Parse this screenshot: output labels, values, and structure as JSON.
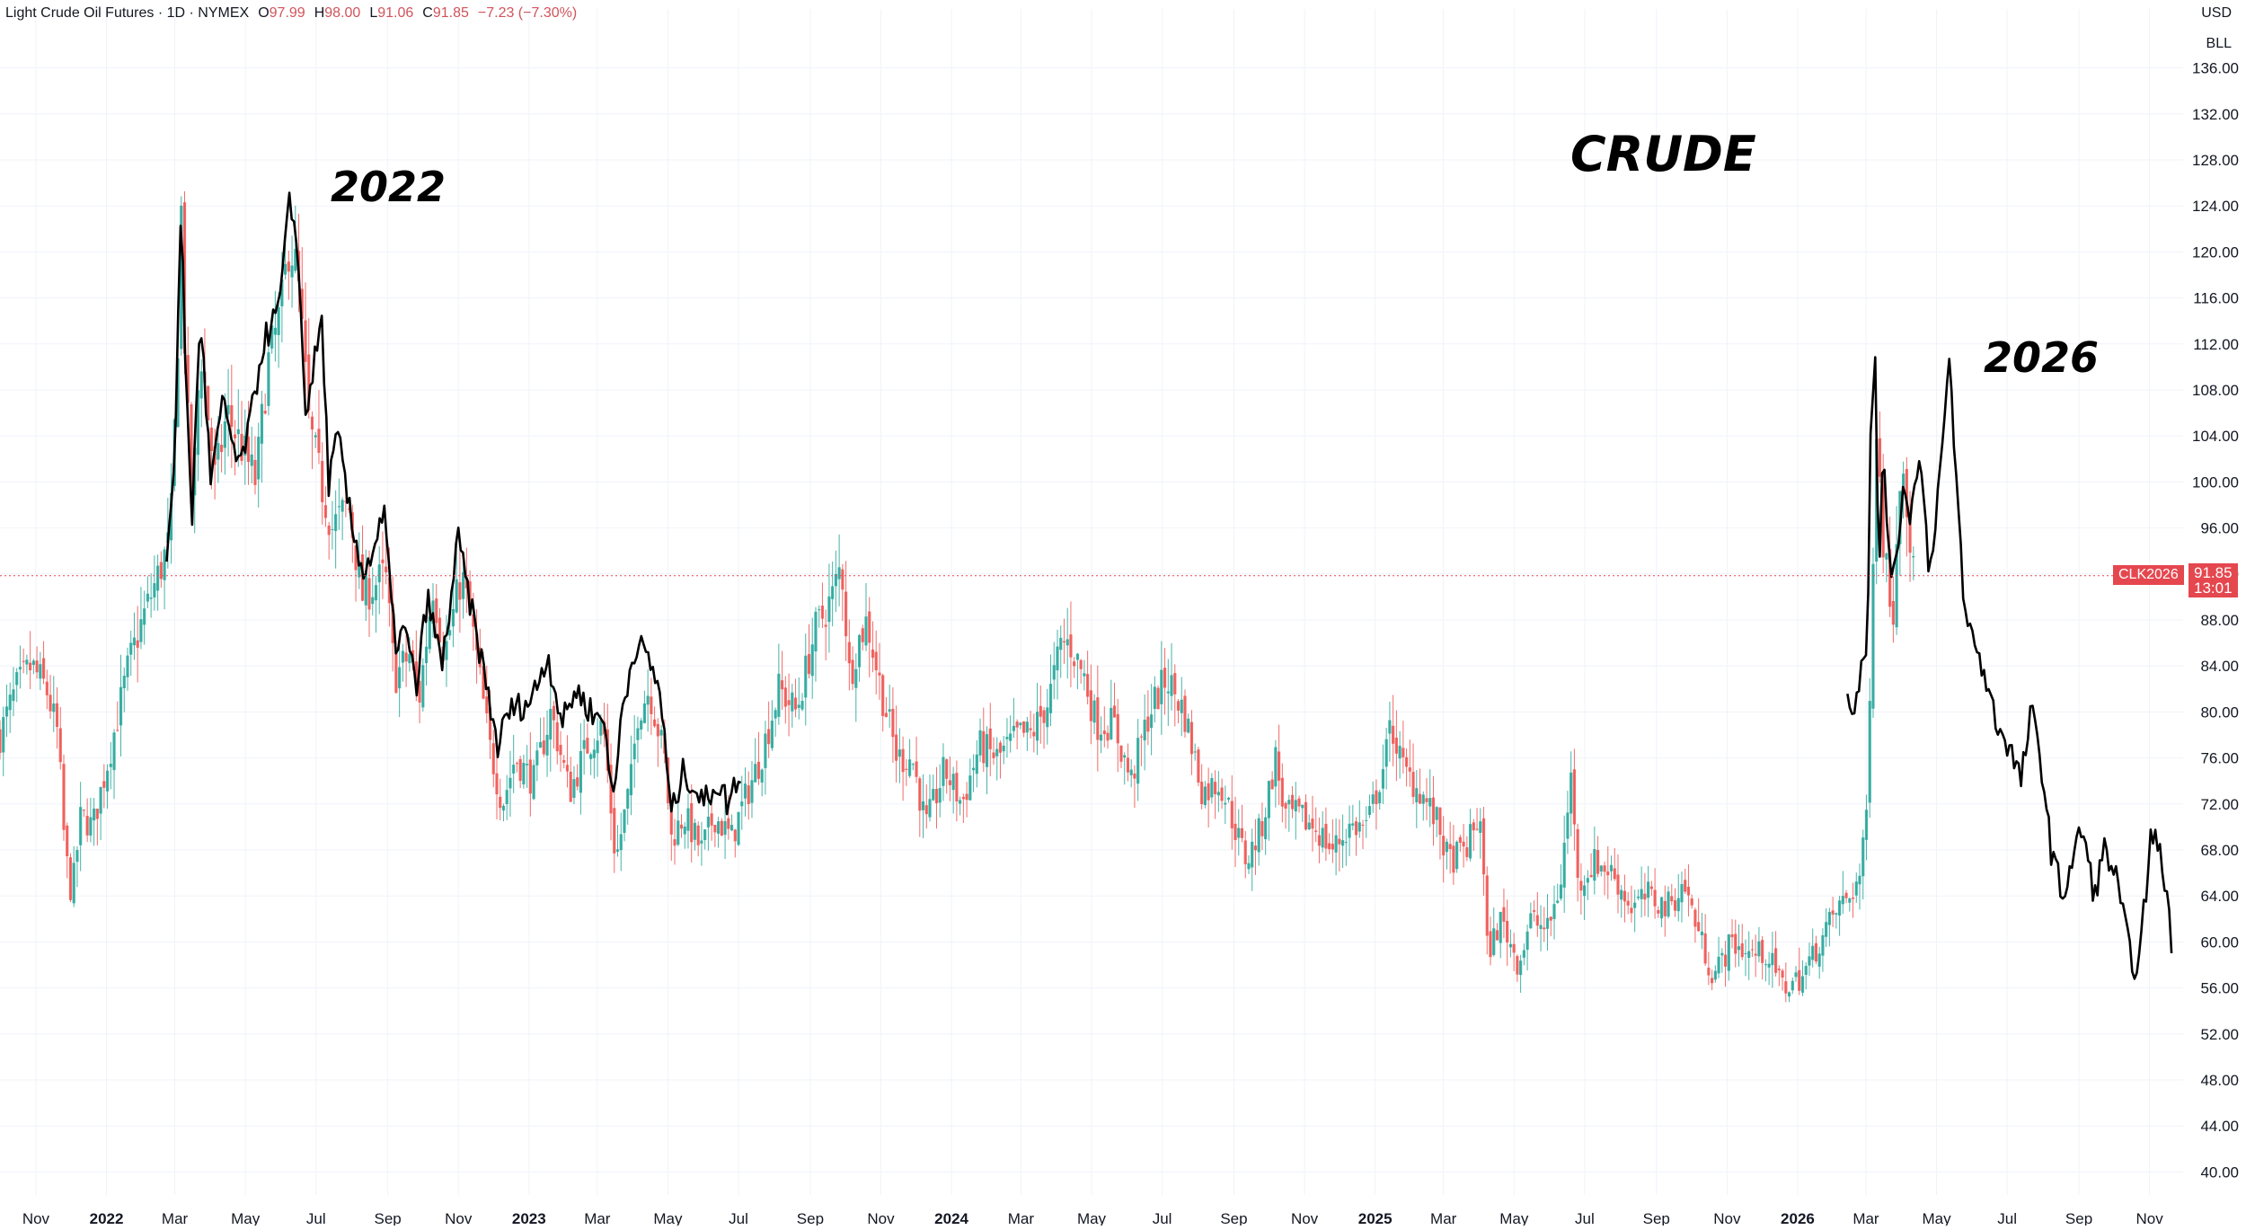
{
  "header": {
    "symbol_title": "Light Crude Oil Futures · 1D · NYMEX",
    "open_label": "O",
    "open_value": "97.99",
    "high_label": "H",
    "high_value": "98.00",
    "low_label": "L",
    "low_value": "91.06",
    "close_label": "C",
    "close_value": "91.85",
    "change": "−7.23 (−7.30%)"
  },
  "axis": {
    "currency": "USD",
    "unit": "BLL"
  },
  "price_label": {
    "symbol": "CLK2026",
    "price": "91.85",
    "countdown": "13:01"
  },
  "annotations": {
    "main": "CRUDE",
    "left": "2022",
    "right": "2026"
  },
  "colors": {
    "up": "#26a69a",
    "down": "#ef5350",
    "overlay": "#000000",
    "tag": "#e5474f",
    "grid": "#f0f3fa"
  },
  "chart_data": {
    "type": "line",
    "title": "",
    "xlabel": "",
    "ylabel": "",
    "ylim": [
      38,
      138
    ],
    "yticks": [
      40,
      44,
      48,
      52,
      56,
      60,
      64,
      68,
      72,
      76,
      80,
      84,
      88,
      92,
      96,
      100,
      104,
      108,
      112,
      116,
      120,
      124,
      128,
      132,
      136
    ],
    "ytick_labels": [
      "40.00",
      "44.00",
      "48.00",
      "52.00",
      "56.00",
      "60.00",
      "64.00",
      "68.00",
      "72.00",
      "76.00",
      "80.00",
      "84.00",
      "88.00",
      "92.00",
      "96.00",
      "100.00",
      "104.00",
      "108.00",
      "112.00",
      "116.00",
      "120.00",
      "124.00",
      "128.00",
      "132.00",
      "136.00"
    ],
    "xlim": [
      "2021-10-01",
      "2026-11-30"
    ],
    "xticks": [
      {
        "date": "2021-11-01",
        "label": "Nov",
        "bold": false
      },
      {
        "date": "2022-01-01",
        "label": "2022",
        "bold": true
      },
      {
        "date": "2022-03-01",
        "label": "Mar",
        "bold": false
      },
      {
        "date": "2022-05-01",
        "label": "May",
        "bold": false
      },
      {
        "date": "2022-07-01",
        "label": "Jul",
        "bold": false
      },
      {
        "date": "2022-09-01",
        "label": "Sep",
        "bold": false
      },
      {
        "date": "2022-11-01",
        "label": "Nov",
        "bold": false
      },
      {
        "date": "2023-01-01",
        "label": "2023",
        "bold": true
      },
      {
        "date": "2023-03-01",
        "label": "Mar",
        "bold": false
      },
      {
        "date": "2023-05-01",
        "label": "May",
        "bold": false
      },
      {
        "date": "2023-07-01",
        "label": "Jul",
        "bold": false
      },
      {
        "date": "2023-09-01",
        "label": "Sep",
        "bold": false
      },
      {
        "date": "2023-11-01",
        "label": "Nov",
        "bold": false
      },
      {
        "date": "2024-01-01",
        "label": "2024",
        "bold": true
      },
      {
        "date": "2024-03-01",
        "label": "Mar",
        "bold": false
      },
      {
        "date": "2024-05-01",
        "label": "May",
        "bold": false
      },
      {
        "date": "2024-07-01",
        "label": "Jul",
        "bold": false
      },
      {
        "date": "2024-09-01",
        "label": "Sep",
        "bold": false
      },
      {
        "date": "2024-11-01",
        "label": "Nov",
        "bold": false
      },
      {
        "date": "2025-01-01",
        "label": "2025",
        "bold": true
      },
      {
        "date": "2025-03-01",
        "label": "Mar",
        "bold": false
      },
      {
        "date": "2025-05-01",
        "label": "May",
        "bold": false
      },
      {
        "date": "2025-07-01",
        "label": "Jul",
        "bold": false
      },
      {
        "date": "2025-09-01",
        "label": "Sep",
        "bold": false
      },
      {
        "date": "2025-11-01",
        "label": "Nov",
        "bold": false
      },
      {
        "date": "2026-01-01",
        "label": "2026",
        "bold": true
      },
      {
        "date": "2026-03-01",
        "label": "Mar",
        "bold": false
      },
      {
        "date": "2026-05-01",
        "label": "May",
        "bold": false
      },
      {
        "date": "2026-07-01",
        "label": "Jul",
        "bold": false
      },
      {
        "date": "2026-09-01",
        "label": "Sep",
        "bold": false
      },
      {
        "date": "2026-11-01",
        "label": "Nov",
        "bold": false
      }
    ],
    "current_price": 91.85,
    "grid": true,
    "series": [
      {
        "type": "candlestick",
        "points": [
          [
            "2021-10-01",
            78
          ],
          [
            "2021-10-15",
            82
          ],
          [
            "2021-10-28",
            84
          ],
          [
            "2021-11-10",
            82
          ],
          [
            "2021-11-20",
            78
          ],
          [
            "2021-11-26",
            68
          ],
          [
            "2021-12-02",
            64
          ],
          [
            "2021-12-10",
            71
          ],
          [
            "2021-12-20",
            70
          ],
          [
            "2022-01-05",
            77
          ],
          [
            "2022-01-20",
            84
          ],
          [
            "2022-02-01",
            88
          ],
          [
            "2022-02-15",
            92
          ],
          [
            "2022-02-25",
            95
          ],
          [
            "2022-03-03",
            110
          ],
          [
            "2022-03-07",
            125
          ],
          [
            "2022-03-10",
            110
          ],
          [
            "2022-03-16",
            97
          ],
          [
            "2022-03-23",
            112
          ],
          [
            "2022-04-05",
            100
          ],
          [
            "2022-04-15",
            106
          ],
          [
            "2022-04-28",
            103
          ],
          [
            "2022-05-10",
            100
          ],
          [
            "2022-05-20",
            110
          ],
          [
            "2022-06-01",
            115
          ],
          [
            "2022-06-08",
            121
          ],
          [
            "2022-06-15",
            118
          ],
          [
            "2022-06-25",
            105
          ],
          [
            "2022-07-05",
            100
          ],
          [
            "2022-07-15",
            96
          ],
          [
            "2022-07-29",
            98
          ],
          [
            "2022-08-10",
            90
          ],
          [
            "2022-08-30",
            92
          ],
          [
            "2022-09-07",
            83
          ],
          [
            "2022-09-20",
            85
          ],
          [
            "2022-09-28",
            81
          ],
          [
            "2022-10-10",
            91
          ],
          [
            "2022-10-20",
            85
          ],
          [
            "2022-11-04",
            92
          ],
          [
            "2022-11-15",
            86
          ],
          [
            "2022-11-28",
            77
          ],
          [
            "2022-12-09",
            72
          ],
          [
            "2022-12-20",
            76
          ],
          [
            "2023-01-05",
            74
          ],
          [
            "2023-01-20",
            80
          ],
          [
            "2023-02-05",
            73
          ],
          [
            "2023-02-20",
            77
          ],
          [
            "2023-03-06",
            79
          ],
          [
            "2023-03-17",
            67
          ],
          [
            "2023-03-30",
            74
          ],
          [
            "2023-04-05",
            80
          ],
          [
            "2023-04-15",
            82
          ],
          [
            "2023-04-28",
            76
          ],
          [
            "2023-05-04",
            69
          ],
          [
            "2023-05-15",
            71
          ],
          [
            "2023-05-30",
            68
          ],
          [
            "2023-06-10",
            71
          ],
          [
            "2023-06-25",
            69
          ],
          [
            "2023-07-05",
            72
          ],
          [
            "2023-07-20",
            76
          ],
          [
            "2023-08-05",
            82
          ],
          [
            "2023-08-20",
            80
          ],
          [
            "2023-09-05",
            87
          ],
          [
            "2023-09-20",
            90
          ],
          [
            "2023-09-28",
            93
          ],
          [
            "2023-10-05",
            83
          ],
          [
            "2023-10-12",
            86
          ],
          [
            "2023-10-20",
            88
          ],
          [
            "2023-11-01",
            82
          ],
          [
            "2023-11-15",
            76
          ],
          [
            "2023-11-28",
            76
          ],
          [
            "2023-12-10",
            70
          ],
          [
            "2023-12-26",
            75
          ],
          [
            "2024-01-10",
            72
          ],
          [
            "2024-01-25",
            77
          ],
          [
            "2024-02-10",
            76
          ],
          [
            "2024-02-28",
            78
          ],
          [
            "2024-03-10",
            78
          ],
          [
            "2024-03-25",
            81
          ],
          [
            "2024-04-05",
            86
          ],
          [
            "2024-04-12",
            86
          ],
          [
            "2024-04-25",
            83
          ],
          [
            "2024-05-05",
            79
          ],
          [
            "2024-05-20",
            79
          ],
          [
            "2024-06-04",
            74
          ],
          [
            "2024-06-20",
            80
          ],
          [
            "2024-07-05",
            83
          ],
          [
            "2024-07-20",
            80
          ],
          [
            "2024-08-05",
            73
          ],
          [
            "2024-08-20",
            74
          ],
          [
            "2024-09-05",
            69
          ],
          [
            "2024-09-12",
            67
          ],
          [
            "2024-09-25",
            70
          ],
          [
            "2024-10-07",
            76
          ],
          [
            "2024-10-15",
            71
          ],
          [
            "2024-10-25",
            71
          ],
          [
            "2024-11-10",
            70
          ],
          [
            "2024-11-25",
            68
          ],
          [
            "2024-12-10",
            70
          ],
          [
            "2024-12-25",
            70
          ],
          [
            "2025-01-10",
            76
          ],
          [
            "2025-01-15",
            79
          ],
          [
            "2025-01-25",
            75
          ],
          [
            "2025-02-10",
            73
          ],
          [
            "2025-02-25",
            70
          ],
          [
            "2025-03-05",
            67
          ],
          [
            "2025-03-20",
            68
          ],
          [
            "2025-04-02",
            71
          ],
          [
            "2025-04-08",
            59
          ],
          [
            "2025-04-20",
            62
          ],
          [
            "2025-05-05",
            58
          ],
          [
            "2025-05-15",
            62
          ],
          [
            "2025-05-30",
            61
          ],
          [
            "2025-06-10",
            65
          ],
          [
            "2025-06-20",
            75
          ],
          [
            "2025-06-25",
            65
          ],
          [
            "2025-07-10",
            67
          ],
          [
            "2025-07-25",
            66
          ],
          [
            "2025-08-10",
            63
          ],
          [
            "2025-08-25",
            64
          ],
          [
            "2025-09-10",
            63
          ],
          [
            "2025-09-25",
            65
          ],
          [
            "2025-10-10",
            60
          ],
          [
            "2025-10-20",
            57
          ],
          [
            "2025-11-05",
            60
          ],
          [
            "2025-11-20",
            59
          ],
          [
            "2025-12-05",
            59
          ],
          [
            "2025-12-20",
            56
          ],
          [
            "2026-01-05",
            57
          ],
          [
            "2026-01-20",
            60
          ],
          [
            "2026-02-05",
            63
          ],
          [
            "2026-02-15",
            64
          ],
          [
            "2026-02-25",
            66
          ],
          [
            "2026-03-02",
            72
          ],
          [
            "2026-03-06",
            90
          ],
          [
            "2026-03-10",
            105
          ],
          [
            "2026-03-16",
            95
          ],
          [
            "2026-03-24",
            88
          ],
          [
            "2026-04-01",
            104
          ],
          [
            "2026-04-08",
            95
          ],
          [
            "2026-04-13",
            90
          ]
        ]
      },
      {
        "type": "line",
        "points": [
          [
            "2022-02-22",
            93
          ],
          [
            "2022-03-01",
            103
          ],
          [
            "2022-03-07",
            125
          ],
          [
            "2022-03-10",
            110
          ],
          [
            "2022-03-16",
            97
          ],
          [
            "2022-03-23",
            115
          ],
          [
            "2022-04-01",
            100
          ],
          [
            "2022-04-12",
            107
          ],
          [
            "2022-04-25",
            101
          ],
          [
            "2022-05-05",
            105
          ],
          [
            "2022-05-16",
            112
          ],
          [
            "2022-05-30",
            115
          ],
          [
            "2022-06-08",
            124
          ],
          [
            "2022-06-14",
            122
          ],
          [
            "2022-06-22",
            106
          ],
          [
            "2022-07-06",
            114
          ],
          [
            "2022-07-12",
            100
          ],
          [
            "2022-07-20",
            104
          ],
          [
            "2022-08-01",
            96
          ],
          [
            "2022-08-12",
            92
          ],
          [
            "2022-08-29",
            97
          ],
          [
            "2022-09-07",
            86
          ],
          [
            "2022-09-16",
            87
          ],
          [
            "2022-09-26",
            82
          ],
          [
            "2022-10-05",
            90
          ],
          [
            "2022-10-18",
            84
          ],
          [
            "2022-11-01",
            95
          ],
          [
            "2022-11-10",
            90
          ],
          [
            "2022-11-22",
            84
          ],
          [
            "2022-12-05",
            77
          ],
          [
            "2022-12-14",
            80
          ],
          [
            "2023-01-03",
            81
          ],
          [
            "2023-01-17",
            85
          ],
          [
            "2023-01-30",
            79
          ],
          [
            "2023-02-10",
            82
          ],
          [
            "2023-02-24",
            80
          ],
          [
            "2023-03-08",
            79
          ],
          [
            "2023-03-15",
            72
          ],
          [
            "2023-03-22",
            80
          ],
          [
            "2023-04-03",
            86
          ],
          [
            "2023-04-12",
            85
          ],
          [
            "2023-04-24",
            82
          ],
          [
            "2023-05-04",
            71
          ],
          [
            "2023-05-15",
            75
          ],
          [
            "2023-06-01",
            72
          ],
          [
            "2023-06-12",
            74
          ],
          [
            "2023-06-22",
            72
          ],
          [
            "2023-07-03",
            75
          ]
        ]
      },
      {
        "type": "line",
        "points": [
          [
            "2026-02-13",
            81
          ],
          [
            "2026-02-20",
            80
          ],
          [
            "2026-02-26",
            86
          ],
          [
            "2026-03-02",
            85
          ],
          [
            "2026-03-05",
            104
          ],
          [
            "2026-03-09",
            112
          ],
          [
            "2026-03-12",
            90
          ],
          [
            "2026-03-16",
            103
          ],
          [
            "2026-03-20",
            95
          ],
          [
            "2026-03-26",
            91
          ],
          [
            "2026-04-02",
            100
          ],
          [
            "2026-04-09",
            97
          ],
          [
            "2026-04-16",
            103
          ],
          [
            "2026-04-25",
            92
          ],
          [
            "2026-05-04",
            101
          ],
          [
            "2026-05-12",
            110
          ],
          [
            "2026-05-20",
            97
          ],
          [
            "2026-05-26",
            88
          ],
          [
            "2026-06-03",
            86
          ],
          [
            "2026-06-12",
            83
          ],
          [
            "2026-06-22",
            79
          ],
          [
            "2026-07-03",
            77
          ],
          [
            "2026-07-13",
            74
          ],
          [
            "2026-07-22",
            80
          ],
          [
            "2026-07-30",
            76
          ],
          [
            "2026-08-08",
            68
          ],
          [
            "2026-08-18",
            64
          ],
          [
            "2026-08-26",
            67
          ],
          [
            "2026-09-04",
            70
          ],
          [
            "2026-09-14",
            64
          ],
          [
            "2026-09-23",
            68
          ],
          [
            "2026-10-02",
            66
          ],
          [
            "2026-10-13",
            60
          ],
          [
            "2026-10-22",
            57
          ],
          [
            "2026-11-03",
            70
          ],
          [
            "2026-11-11",
            67
          ],
          [
            "2026-11-17",
            64
          ],
          [
            "2026-11-20",
            59
          ]
        ]
      }
    ]
  }
}
